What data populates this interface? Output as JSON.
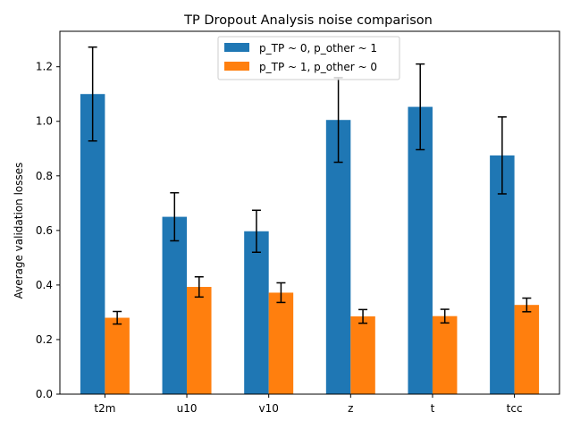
{
  "chart_data": {
    "type": "bar",
    "title": "TP Dropout Analysis noise comparison",
    "xlabel": "",
    "ylabel": "Average validation losses",
    "categories": [
      "t2m",
      "u10",
      "v10",
      "z",
      "t",
      "tcc"
    ],
    "ylim": [
      0,
      1.33
    ],
    "yticks": [
      "0.0",
      "0.2",
      "0.4",
      "0.6",
      "0.8",
      "1.0",
      "1.2"
    ],
    "grid": false,
    "legend_position": "upper center",
    "series": [
      {
        "name": "p_TP ~ 0, p_other ~ 1",
        "color": "#1f77b4",
        "values": [
          1.1,
          0.65,
          0.597,
          1.005,
          1.053,
          0.875
        ],
        "errors": [
          0.172,
          0.088,
          0.077,
          0.155,
          0.157,
          0.141
        ]
      },
      {
        "name": "p_TP ~ 1, p_other ~ 0",
        "color": "#ff7f0e",
        "values": [
          0.28,
          0.393,
          0.372,
          0.285,
          0.286,
          0.327
        ],
        "errors": [
          0.023,
          0.037,
          0.036,
          0.025,
          0.025,
          0.025
        ]
      }
    ]
  }
}
